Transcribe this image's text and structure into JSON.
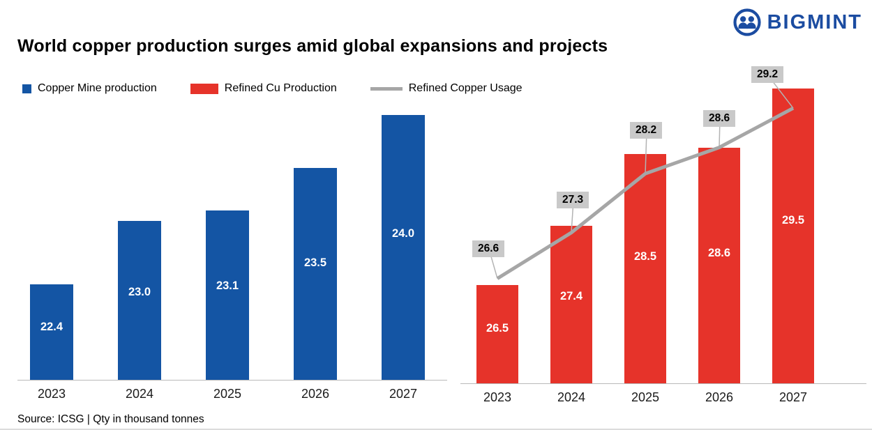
{
  "header": {
    "title": "World copper production surges amid global expansions and projects",
    "logo_text": "BIGMINT",
    "brand_color": "#1b4ca1"
  },
  "legend": {
    "items": [
      {
        "label": "Copper Mine production",
        "color": "#1455a4",
        "swatch": "square"
      },
      {
        "label": "Refined Cu Production",
        "color": "#e6332a",
        "swatch": "rect"
      },
      {
        "label": "Refined Copper Usage",
        "color": "#a6a6a6",
        "swatch": "line"
      }
    ]
  },
  "source": "Source: ICSG | Qty in thousand tonnes",
  "chart_data": [
    {
      "type": "bar",
      "categories": [
        "2023",
        "2024",
        "2025",
        "2026",
        "2027"
      ],
      "series": [
        {
          "name": "Copper Mine production",
          "type": "bar",
          "values": [
            22.4,
            23.0,
            23.1,
            23.5,
            24.0
          ],
          "color": "#1455a4",
          "label_color": "#ffffff"
        }
      ],
      "ylim": [
        21.5,
        24.5
      ],
      "grid": false,
      "legend_position": "top"
    },
    {
      "type": "combo",
      "categories": [
        "2023",
        "2024",
        "2025",
        "2026",
        "2027"
      ],
      "series": [
        {
          "name": "Refined Cu Production",
          "type": "bar",
          "values": [
            26.5,
            27.4,
            28.5,
            28.6,
            29.5
          ],
          "color": "#e6332a",
          "label_color": "#ffffff"
        },
        {
          "name": "Refined Copper Usage",
          "type": "line",
          "values": [
            26.6,
            27.3,
            28.2,
            28.6,
            29.2
          ],
          "color": "#a6a6a6",
          "label_bg": "#c9c9c9"
        }
      ],
      "ylim": [
        25.0,
        30.0
      ],
      "grid": false,
      "legend_position": "top"
    }
  ]
}
